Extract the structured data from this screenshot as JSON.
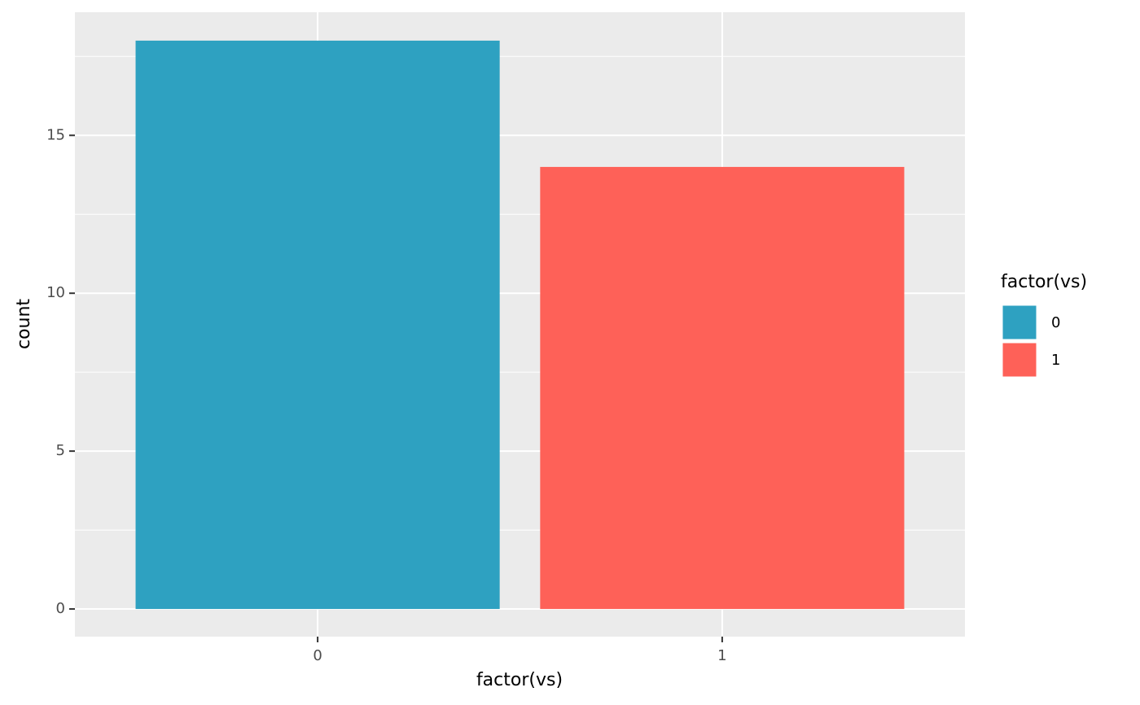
{
  "chart_data": {
    "type": "bar",
    "categories": [
      "0",
      "1"
    ],
    "values": [
      18,
      14
    ],
    "colors": [
      "#2ea1c1",
      "#fe6158"
    ],
    "x_label": "factor(vs)",
    "y_label": "count",
    "legend_title": "factor(vs)",
    "legend": "right",
    "ylim": [
      -0.875,
      18.9
    ],
    "yticks": [
      0,
      5,
      10,
      15
    ],
    "grid": true
  }
}
